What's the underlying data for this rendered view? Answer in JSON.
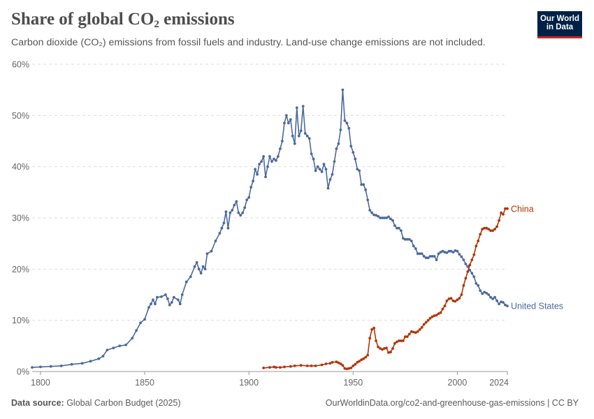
{
  "header": {
    "title_main": "Share of global CO",
    "title_sub": "2",
    "title_tail": " emissions",
    "subtitle": "Carbon dioxide (CO₂) emissions from fossil fuels and industry. Land-use change emissions are not included."
  },
  "logo": {
    "line1": "Our World",
    "line2": "in Data",
    "bg_color": "#002147",
    "accent_color": "#ce261e"
  },
  "footer": {
    "source_label": "Data source:",
    "source_value": " Global Carbon Budget (2025)",
    "url": "OurWorldinData.org/co2-and-greenhouse-gas-emissions | CC BY"
  },
  "chart_data": {
    "type": "line",
    "xlim": [
      1796,
      2024
    ],
    "ylim": [
      0,
      60
    ],
    "x_ticks": [
      1800,
      1850,
      1900,
      1950,
      2000,
      2024
    ],
    "x_tick_labels": [
      "1800",
      "1850",
      "1900",
      "1950",
      "2000",
      "2024"
    ],
    "y_ticks": [
      0,
      10,
      20,
      30,
      40,
      50,
      60
    ],
    "y_tick_labels": [
      "0%",
      "10%",
      "20%",
      "30%",
      "40%",
      "50%",
      "60%"
    ],
    "grid": "horizontal dashed",
    "legend": "labels at line ends (right)",
    "series": [
      {
        "name": "United States",
        "color": "#4c6a9c",
        "points": [
          [
            1796,
            0.8
          ],
          [
            1800,
            0.9
          ],
          [
            1805,
            1.0
          ],
          [
            1810,
            1.1
          ],
          [
            1815,
            1.4
          ],
          [
            1820,
            1.6
          ],
          [
            1824,
            2.0
          ],
          [
            1828,
            2.5
          ],
          [
            1830,
            3.0
          ],
          [
            1832,
            4.2
          ],
          [
            1835,
            4.6
          ],
          [
            1838,
            5.0
          ],
          [
            1841,
            5.2
          ],
          [
            1844,
            6.5
          ],
          [
            1846,
            8.0
          ],
          [
            1848,
            9.5
          ],
          [
            1850,
            10.2
          ],
          [
            1852,
            12.5
          ],
          [
            1853,
            13.2
          ],
          [
            1854,
            14.0
          ],
          [
            1855,
            13.2
          ],
          [
            1856,
            14.5
          ],
          [
            1858,
            14.6
          ],
          [
            1860,
            15.0
          ],
          [
            1861,
            14.2
          ],
          [
            1862,
            13.0
          ],
          [
            1863,
            13.5
          ],
          [
            1864,
            14.5
          ],
          [
            1866,
            14.0
          ],
          [
            1867,
            13.2
          ],
          [
            1868,
            15.0
          ],
          [
            1870,
            17.5
          ],
          [
            1872,
            18.5
          ],
          [
            1874,
            20.5
          ],
          [
            1875,
            21.3
          ],
          [
            1876,
            20.0
          ],
          [
            1877,
            19.2
          ],
          [
            1878,
            20.5
          ],
          [
            1879,
            20.0
          ],
          [
            1880,
            23.0
          ],
          [
            1882,
            23.5
          ],
          [
            1884,
            25.5
          ],
          [
            1886,
            27.0
          ],
          [
            1887,
            28.0
          ],
          [
            1888,
            29.0
          ],
          [
            1889,
            31.2
          ],
          [
            1890,
            28.0
          ],
          [
            1891,
            31.0
          ],
          [
            1892,
            31.5
          ],
          [
            1893,
            32.5
          ],
          [
            1894,
            33.2
          ],
          [
            1895,
            31.0
          ],
          [
            1896,
            30.5
          ],
          [
            1897,
            31.0
          ],
          [
            1898,
            32.0
          ],
          [
            1899,
            33.5
          ],
          [
            1900,
            34.0
          ],
          [
            1901,
            36.0
          ],
          [
            1902,
            37.2
          ],
          [
            1903,
            39.5
          ],
          [
            1904,
            38.5
          ],
          [
            1905,
            40.5
          ],
          [
            1906,
            41.0
          ],
          [
            1907,
            42.0
          ],
          [
            1908,
            38.0
          ],
          [
            1909,
            40.0
          ],
          [
            1910,
            42.0
          ],
          [
            1911,
            41.0
          ],
          [
            1912,
            41.5
          ],
          [
            1913,
            41.2
          ],
          [
            1914,
            42.0
          ],
          [
            1915,
            43.5
          ],
          [
            1916,
            45.0
          ],
          [
            1917,
            48.5
          ],
          [
            1918,
            50.0
          ],
          [
            1919,
            48.5
          ],
          [
            1920,
            49.2
          ],
          [
            1921,
            46.0
          ],
          [
            1922,
            44.5
          ],
          [
            1923,
            51.5
          ],
          [
            1924,
            46.0
          ],
          [
            1925,
            47.0
          ],
          [
            1926,
            51.8
          ],
          [
            1927,
            46.5
          ],
          [
            1928,
            46.0
          ],
          [
            1929,
            45.5
          ],
          [
            1930,
            42.5
          ],
          [
            1931,
            41.5
          ],
          [
            1932,
            39.2
          ],
          [
            1933,
            40.0
          ],
          [
            1934,
            39.5
          ],
          [
            1935,
            39.0
          ],
          [
            1936,
            40.5
          ],
          [
            1937,
            39.5
          ],
          [
            1938,
            35.8
          ],
          [
            1939,
            37.5
          ],
          [
            1940,
            38.5
          ],
          [
            1941,
            41.0
          ],
          [
            1942,
            43.5
          ],
          [
            1943,
            44.5
          ],
          [
            1944,
            47.2
          ],
          [
            1945,
            55.0
          ],
          [
            1946,
            49.0
          ],
          [
            1947,
            48.5
          ],
          [
            1948,
            47.5
          ],
          [
            1949,
            44.0
          ],
          [
            1950,
            42.8
          ],
          [
            1951,
            41.5
          ],
          [
            1952,
            39.5
          ],
          [
            1953,
            39.2
          ],
          [
            1954,
            36.5
          ],
          [
            1955,
            36.5
          ],
          [
            1956,
            35.5
          ],
          [
            1957,
            33.5
          ],
          [
            1958,
            31.5
          ],
          [
            1959,
            31.0
          ],
          [
            1960,
            30.6
          ],
          [
            1961,
            30.5
          ],
          [
            1962,
            30.3
          ],
          [
            1963,
            30.0
          ],
          [
            1964,
            30.0
          ],
          [
            1965,
            30.0
          ],
          [
            1966,
            30.0
          ],
          [
            1967,
            30.2
          ],
          [
            1968,
            29.8
          ],
          [
            1969,
            29.5
          ],
          [
            1970,
            28.5
          ],
          [
            1971,
            28.0
          ],
          [
            1972,
            28.0
          ],
          [
            1973,
            27.5
          ],
          [
            1974,
            26.0
          ],
          [
            1975,
            25.8
          ],
          [
            1976,
            25.8
          ],
          [
            1977,
            25.8
          ],
          [
            1978,
            25.5
          ],
          [
            1979,
            24.5
          ],
          [
            1980,
            24.0
          ],
          [
            1981,
            23.0
          ],
          [
            1982,
            23.0
          ],
          [
            1983,
            23.0
          ],
          [
            1984,
            22.5
          ],
          [
            1985,
            22.2
          ],
          [
            1986,
            22.2
          ],
          [
            1987,
            22.5
          ],
          [
            1988,
            22.5
          ],
          [
            1989,
            22.5
          ],
          [
            1990,
            21.8
          ],
          [
            1991,
            23.0
          ],
          [
            1992,
            23.3
          ],
          [
            1993,
            23.5
          ],
          [
            1994,
            23.3
          ],
          [
            1995,
            23.2
          ],
          [
            1996,
            23.5
          ],
          [
            1997,
            23.5
          ],
          [
            1998,
            23.3
          ],
          [
            1999,
            23.6
          ],
          [
            2000,
            23.5
          ],
          [
            2001,
            22.9
          ],
          [
            2002,
            22.4
          ],
          [
            2003,
            21.8
          ],
          [
            2004,
            21.0
          ],
          [
            2005,
            20.5
          ],
          [
            2006,
            19.8
          ],
          [
            2007,
            19.2
          ],
          [
            2008,
            18.5
          ],
          [
            2009,
            17.2
          ],
          [
            2010,
            16.8
          ],
          [
            2011,
            15.8
          ],
          [
            2012,
            15.2
          ],
          [
            2013,
            15.5
          ],
          [
            2014,
            15.3
          ],
          [
            2015,
            15.0
          ],
          [
            2016,
            14.5
          ],
          [
            2017,
            14.2
          ],
          [
            2018,
            14.5
          ],
          [
            2019,
            13.8
          ],
          [
            2020,
            13.2
          ],
          [
            2021,
            13.6
          ],
          [
            2022,
            13.5
          ],
          [
            2023,
            13.0
          ],
          [
            2024,
            12.8
          ]
        ]
      },
      {
        "name": "China",
        "color": "#b13507",
        "points": [
          [
            1907,
            0.7
          ],
          [
            1910,
            0.8
          ],
          [
            1912,
            0.9
          ],
          [
            1913,
            0.8
          ],
          [
            1915,
            0.8
          ],
          [
            1917,
            0.9
          ],
          [
            1920,
            1.0
          ],
          [
            1922,
            1.1
          ],
          [
            1925,
            1.2
          ],
          [
            1928,
            1.1
          ],
          [
            1930,
            1.1
          ],
          [
            1932,
            1.1
          ],
          [
            1935,
            1.3
          ],
          [
            1937,
            1.5
          ],
          [
            1939,
            1.6
          ],
          [
            1940,
            1.8
          ],
          [
            1942,
            1.9
          ],
          [
            1943,
            1.7
          ],
          [
            1944,
            1.5
          ],
          [
            1945,
            1.2
          ],
          [
            1946,
            0.6
          ],
          [
            1947,
            0.5
          ],
          [
            1948,
            0.6
          ],
          [
            1949,
            0.7
          ],
          [
            1950,
            1.1
          ],
          [
            1951,
            1.4
          ],
          [
            1952,
            1.8
          ],
          [
            1953,
            2.0
          ],
          [
            1954,
            2.3
          ],
          [
            1955,
            2.5
          ],
          [
            1956,
            2.8
          ],
          [
            1957,
            3.2
          ],
          [
            1958,
            6.5
          ],
          [
            1959,
            8.2
          ],
          [
            1960,
            8.5
          ],
          [
            1961,
            6.0
          ],
          [
            1962,
            4.8
          ],
          [
            1963,
            4.5
          ],
          [
            1964,
            4.3
          ],
          [
            1965,
            4.5
          ],
          [
            1966,
            4.6
          ],
          [
            1967,
            3.7
          ],
          [
            1968,
            3.8
          ],
          [
            1969,
            4.5
          ],
          [
            1970,
            5.5
          ],
          [
            1971,
            5.8
          ],
          [
            1972,
            6.0
          ],
          [
            1973,
            6.0
          ],
          [
            1974,
            6.0
          ],
          [
            1975,
            6.8
          ],
          [
            1976,
            6.8
          ],
          [
            1977,
            7.3
          ],
          [
            1978,
            7.8
          ],
          [
            1979,
            7.7
          ],
          [
            1980,
            7.6
          ],
          [
            1981,
            7.8
          ],
          [
            1982,
            8.2
          ],
          [
            1983,
            8.6
          ],
          [
            1984,
            9.2
          ],
          [
            1985,
            9.6
          ],
          [
            1986,
            10.0
          ],
          [
            1987,
            10.4
          ],
          [
            1988,
            10.7
          ],
          [
            1989,
            10.9
          ],
          [
            1990,
            11.0
          ],
          [
            1991,
            11.3
          ],
          [
            1992,
            11.5
          ],
          [
            1993,
            12.2
          ],
          [
            1994,
            12.8
          ],
          [
            1995,
            13.8
          ],
          [
            1996,
            14.2
          ],
          [
            1997,
            14.3
          ],
          [
            1998,
            13.8
          ],
          [
            1999,
            13.7
          ],
          [
            2000,
            14.0
          ],
          [
            2001,
            14.3
          ],
          [
            2002,
            15.0
          ],
          [
            2003,
            16.8
          ],
          [
            2004,
            18.2
          ],
          [
            2005,
            19.5
          ],
          [
            2006,
            20.8
          ],
          [
            2007,
            21.8
          ],
          [
            2008,
            22.8
          ],
          [
            2009,
            24.5
          ],
          [
            2010,
            25.5
          ],
          [
            2011,
            26.8
          ],
          [
            2012,
            27.8
          ],
          [
            2013,
            28.0
          ],
          [
            2014,
            28.0
          ],
          [
            2015,
            27.8
          ],
          [
            2016,
            27.5
          ],
          [
            2017,
            27.5
          ],
          [
            2018,
            27.8
          ],
          [
            2019,
            28.3
          ],
          [
            2020,
            29.5
          ],
          [
            2021,
            31.0
          ],
          [
            2022,
            30.7
          ],
          [
            2023,
            31.8
          ],
          [
            2024,
            31.8
          ]
        ]
      }
    ]
  }
}
